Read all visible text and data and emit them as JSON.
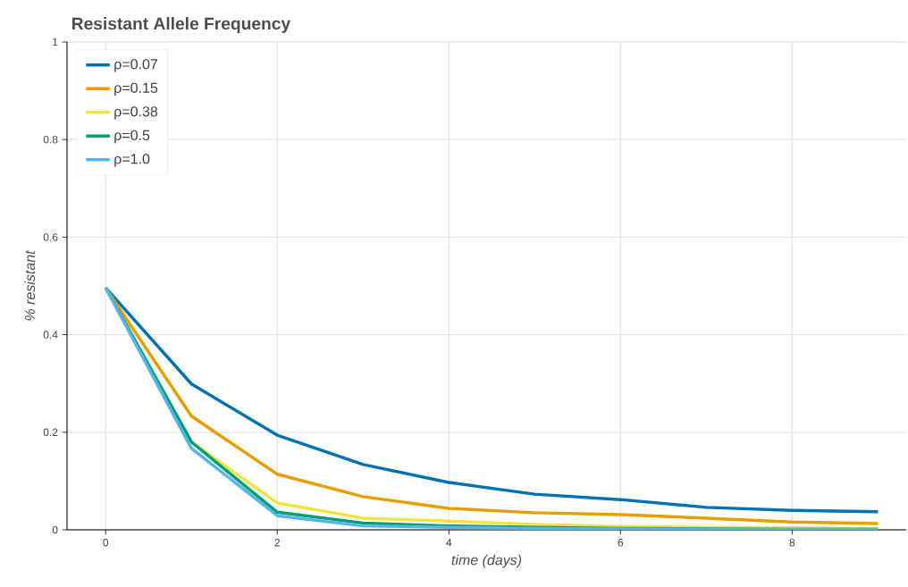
{
  "chart_data": {
    "type": "line",
    "title": "Resistant Allele Frequency",
    "xlabel": "time (days)",
    "ylabel": "% resistant",
    "x": [
      0,
      1,
      2,
      3,
      4,
      5,
      6,
      7,
      8,
      9
    ],
    "series": [
      {
        "name": "ρ=0.07",
        "color": "#0072b2",
        "values": [
          0.496,
          0.299,
          0.194,
          0.134,
          0.097,
          0.073,
          0.062,
          0.046,
          0.04,
          0.037
        ]
      },
      {
        "name": "ρ=0.15",
        "color": "#e69f00",
        "values": [
          0.496,
          0.233,
          0.114,
          0.068,
          0.044,
          0.035,
          0.031,
          0.024,
          0.016,
          0.013
        ]
      },
      {
        "name": "ρ=0.38",
        "color": "#f0e442",
        "values": [
          0.496,
          0.18,
          0.055,
          0.024,
          0.018,
          0.011,
          0.007,
          0.005,
          0.004,
          0.003
        ]
      },
      {
        "name": "ρ=0.5",
        "color": "#009e73",
        "values": [
          0.496,
          0.18,
          0.036,
          0.014,
          0.008,
          0.005,
          0.003,
          0.002,
          0.001,
          0.001
        ]
      },
      {
        "name": "ρ=1.0",
        "color": "#56b4e9",
        "values": [
          0.496,
          0.167,
          0.029,
          0.008,
          0.005,
          0.003,
          0.002,
          0.001,
          0.001,
          0.001
        ]
      }
    ],
    "xlim": [
      -0.45,
      9.33
    ],
    "ylim": [
      0,
      1
    ],
    "xticks": [
      0,
      2,
      4,
      6,
      8
    ],
    "yticks": [
      0,
      0.2,
      0.4,
      0.6,
      0.8,
      1
    ],
    "grid": true,
    "legend": "top left",
    "line_style": "solid",
    "marker": "none"
  }
}
